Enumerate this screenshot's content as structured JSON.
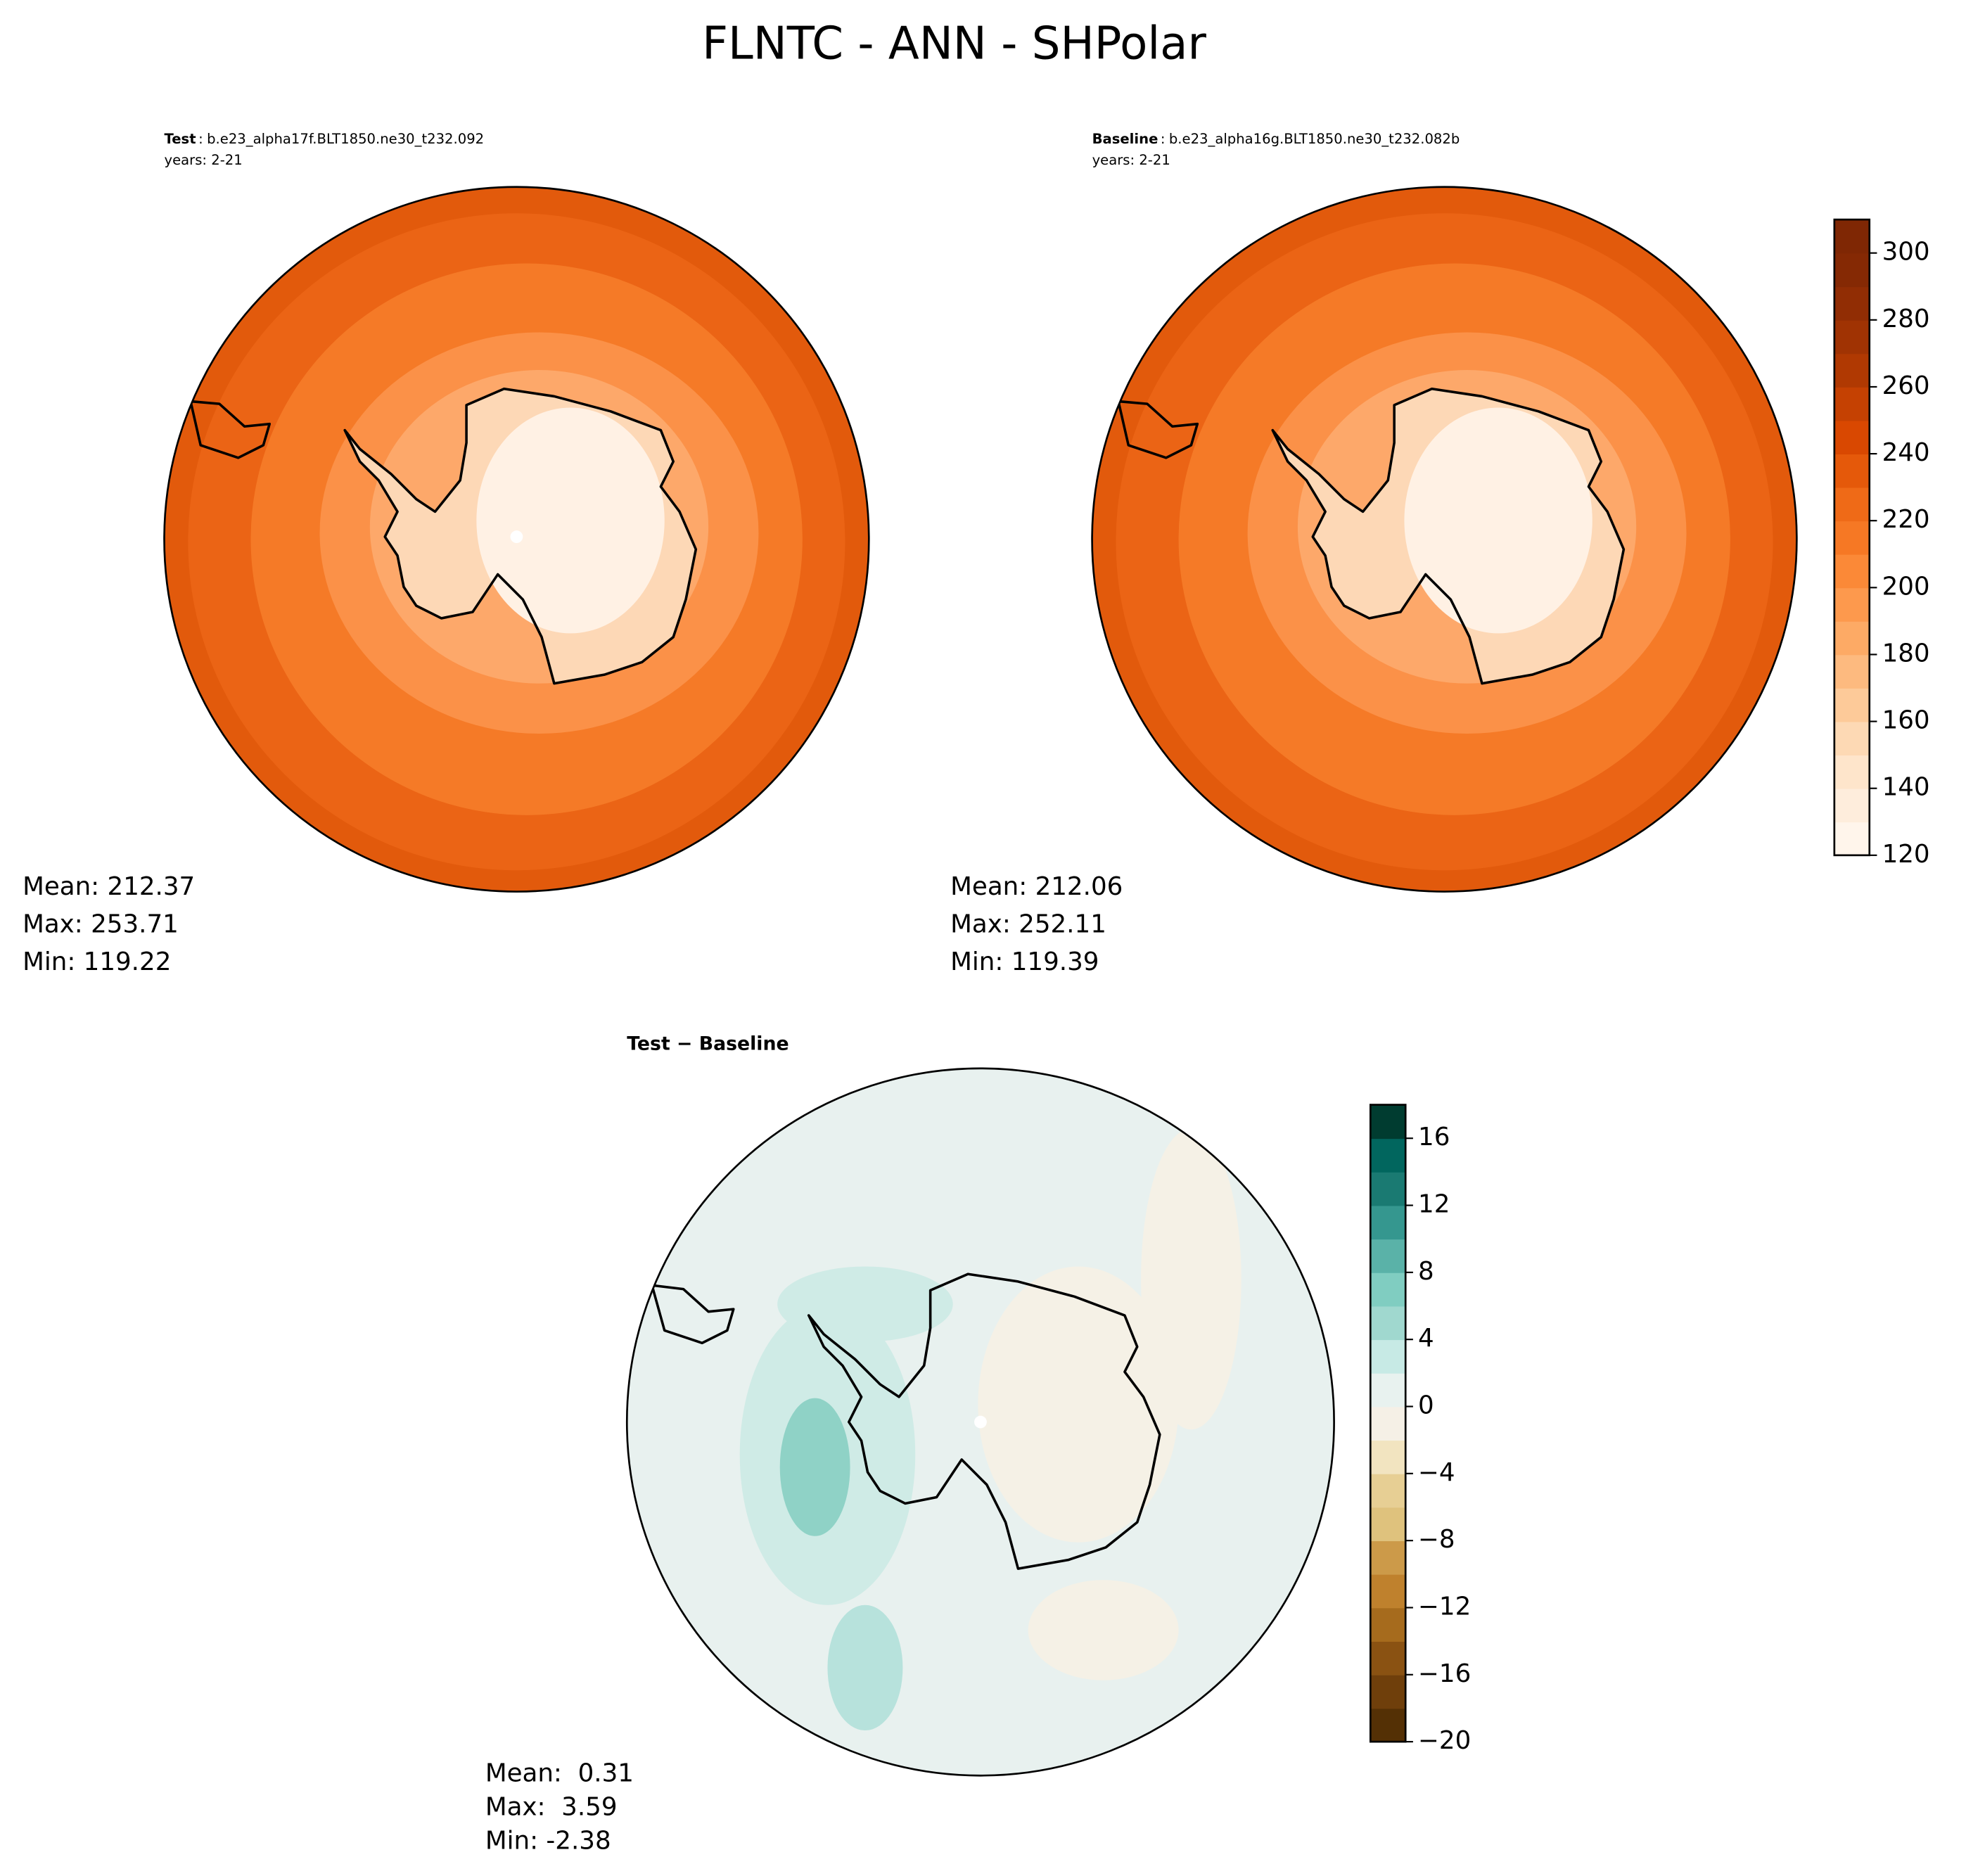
{
  "title": "FLNTC - ANN - SHPolar",
  "panels": [
    {
      "label": "Test",
      "separator": ":",
      "case": "b.e23_alpha17f.BLT1850.ne30_t232.092",
      "years": "years: 2-21",
      "stats": [
        "Mean: 212.37",
        "Max: 253.71",
        "Min: 119.22"
      ]
    },
    {
      "label": "Baseline",
      "separator": ":",
      "case": "b.e23_alpha16g.BLT1850.ne30_t232.082b",
      "years": "years: 2-21",
      "stats": [
        "Mean: 212.06",
        "Max: 252.11",
        "Min: 119.39"
      ]
    },
    {
      "label": "Test − Baseline",
      "stats": [
        "Mean:  0.31",
        "Max:  3.59",
        "Min: -2.38"
      ]
    }
  ],
  "colorbars": [
    {
      "levels": [
        120,
        130,
        140,
        150,
        160,
        170,
        180,
        190,
        200,
        210,
        220,
        230,
        240,
        250,
        260,
        270,
        280,
        290,
        300,
        310
      ],
      "colors": [
        "#fff5eb",
        "#feeddc",
        "#fee5cb",
        "#fdd9b4",
        "#fdca99",
        "#fdba7f",
        "#fdaa65",
        "#fd994d",
        "#fb8937",
        "#f67824",
        "#ef6a17",
        "#e5590a",
        "#d94801",
        "#c54102",
        "#b03902",
        "#a03303",
        "#912d04",
        "#852904",
        "#7f2704"
      ],
      "ticks": [
        120,
        140,
        160,
        180,
        200,
        220,
        240,
        260,
        280,
        300
      ]
    },
    {
      "levels": [
        -20,
        -18,
        -16,
        -14,
        -12,
        -10,
        -8,
        -6,
        -4,
        -2,
        0,
        2,
        4,
        6,
        8,
        10,
        12,
        14,
        16,
        18
      ],
      "colors": [
        "#543005",
        "#6f3f0b",
        "#8a5212",
        "#a66b1d",
        "#bf812d",
        "#cc9a49",
        "#dfc27d",
        "#e7cf94",
        "#f2e4c0",
        "#f5f0e6",
        "#e8f2ef",
        "#c7eae5",
        "#a0d8cf",
        "#80cdc1",
        "#5ab2a8",
        "#35978f",
        "#1a7a72",
        "#01665e",
        "#003c30"
      ],
      "ticks": [
        {
          "value": -20,
          "label": "−20"
        },
        {
          "value": -16,
          "label": "−16"
        },
        {
          "value": -12,
          "label": "−12"
        },
        {
          "value": -8,
          "label": "−8"
        },
        {
          "value": -4,
          "label": "−4"
        },
        0,
        4,
        8,
        12,
        16
      ]
    }
  ]
}
